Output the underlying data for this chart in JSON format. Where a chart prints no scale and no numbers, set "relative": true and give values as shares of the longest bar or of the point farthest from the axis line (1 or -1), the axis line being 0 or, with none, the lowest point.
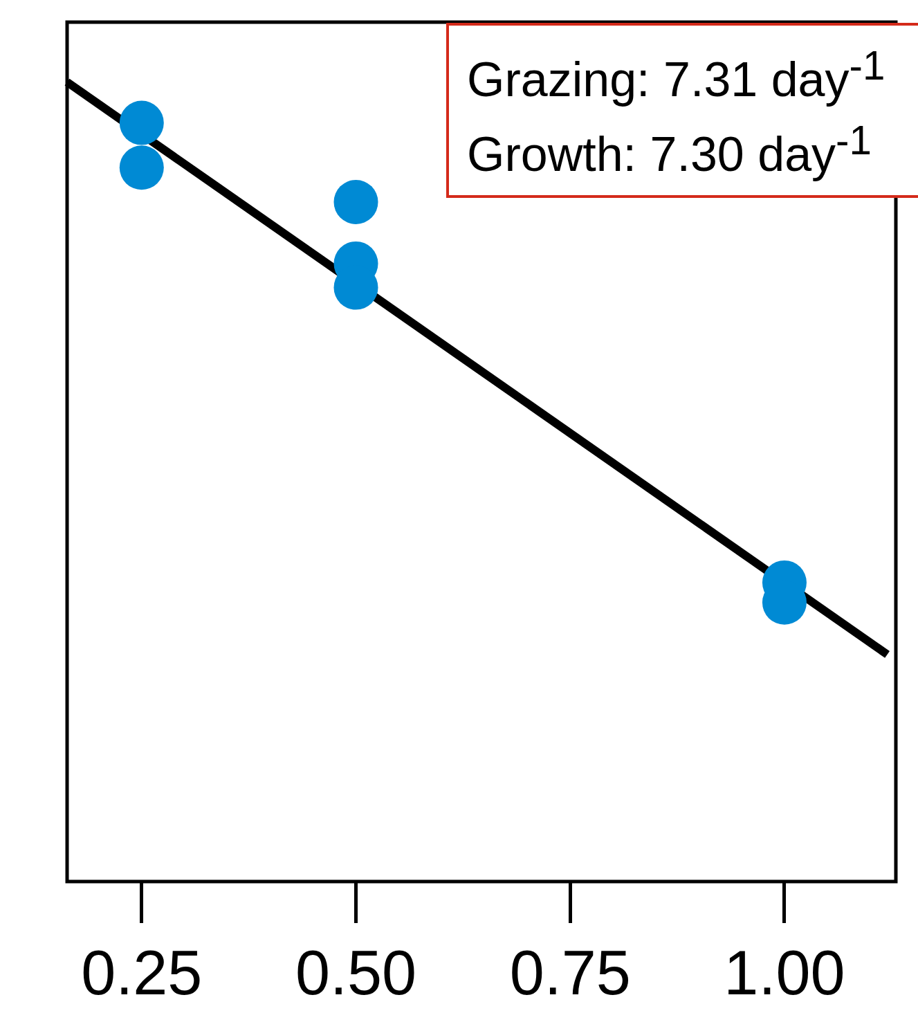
{
  "chart_data": {
    "type": "scatter",
    "relative": true,
    "xlim": [
      0.163,
      1.13
    ],
    "xticks": [
      0.25,
      {
        "value": 0.5,
        "label": "0.50"
      },
      {
        "value": 0.75,
        "label": "0.75"
      },
      {
        "value": 1,
        "label": "1.00"
      }
    ],
    "marker": "circle",
    "annotations": [
      "Grazing: 7.31 day$^{-1}$",
      "Growth: 7.30 day$^{-1}$"
    ],
    "series": [
      {
        "color": "#008ad4",
        "x": [
          0.25,
          0.25,
          0.5,
          0.5,
          0.5,
          1,
          1
        ],
        "values": [
          0.949,
          0.893,
          0.85,
          0.773,
          0.743,
          0.374,
          0.349
        ]
      },
      {
        "type": "line",
        "color": "#000000",
        "line_style": "solid",
        "marker": "none",
        "x": [
          0.163,
          1.12
        ],
        "values": [
          1,
          0.284
        ]
      }
    ]
  }
}
